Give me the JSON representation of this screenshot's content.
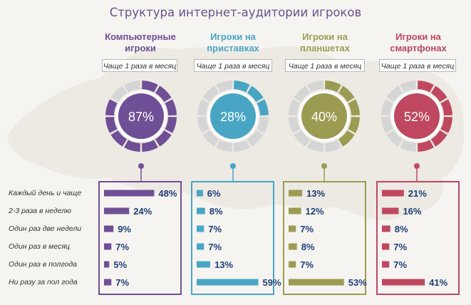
{
  "title": "Структура интернет-аудитории игроков",
  "row_labels": [
    "Каждый день и чаще",
    "2-3 раза в неделю",
    "Один раз две недели",
    "Один раз в месяц",
    "Один раз в полгода",
    "Ни разу за пол года"
  ],
  "colors": {
    "pc": "#6f4f96",
    "console": "#48a6c4",
    "tablet": "#9b9c52",
    "phone": "#bf4860",
    "inactive": "#d5d5d5",
    "title": "#6a4f8e"
  },
  "columns": [
    {
      "id": "pc",
      "title_line1": "Компьютерные",
      "title_line2": "игроки",
      "freq_label": "Чаще 1 раза в месяц",
      "percent_label": "87%",
      "percent": 87
    },
    {
      "id": "console",
      "title_line1": "Игроки на",
      "title_line2": "приставках",
      "freq_label": "Чаще 1 раза в месяц",
      "percent_label": "28%",
      "percent": 28
    },
    {
      "id": "tablet",
      "title_line1": "Игроки на",
      "title_line2": "планшетах",
      "freq_label": "Чаще 1 раза в месяц",
      "percent_label": "40%",
      "percent": 40
    },
    {
      "id": "phone",
      "title_line1": "Игроки на",
      "title_line2": "смартфонах",
      "freq_label": "Чаще 1 раза в месяц",
      "percent_label": "52%",
      "percent": 52
    }
  ],
  "chart_data": {
    "type": "bar",
    "categories": [
      "Каждый день и чаще",
      "2-3 раза в неделю",
      "Один раз две недели",
      "Один раз в месяц",
      "Один раз в полгода",
      "Ни разу за пол года"
    ],
    "series": [
      {
        "name": "Компьютерные игроки",
        "values": [
          48,
          24,
          9,
          7,
          5,
          7
        ],
        "labels": [
          "48%",
          "24%",
          "9%",
          "7%",
          "5%",
          "7%"
        ]
      },
      {
        "name": "Игроки на приставках",
        "values": [
          6,
          8,
          7,
          7,
          13,
          59
        ],
        "labels": [
          "6%",
          "8%",
          "7%",
          "7%",
          "13%",
          "59%"
        ]
      },
      {
        "name": "Игроки на планшетах",
        "values": [
          13,
          12,
          7,
          8,
          7,
          53
        ],
        "labels": [
          "13%",
          "12%",
          "7%",
          "8%",
          "7%",
          "53%"
        ]
      },
      {
        "name": "Игроки на смартфонах",
        "values": [
          21,
          16,
          8,
          7,
          7,
          41
        ],
        "labels": [
          "21%",
          "16%",
          "8%",
          "7%",
          "7%",
          "41%"
        ]
      }
    ]
  }
}
